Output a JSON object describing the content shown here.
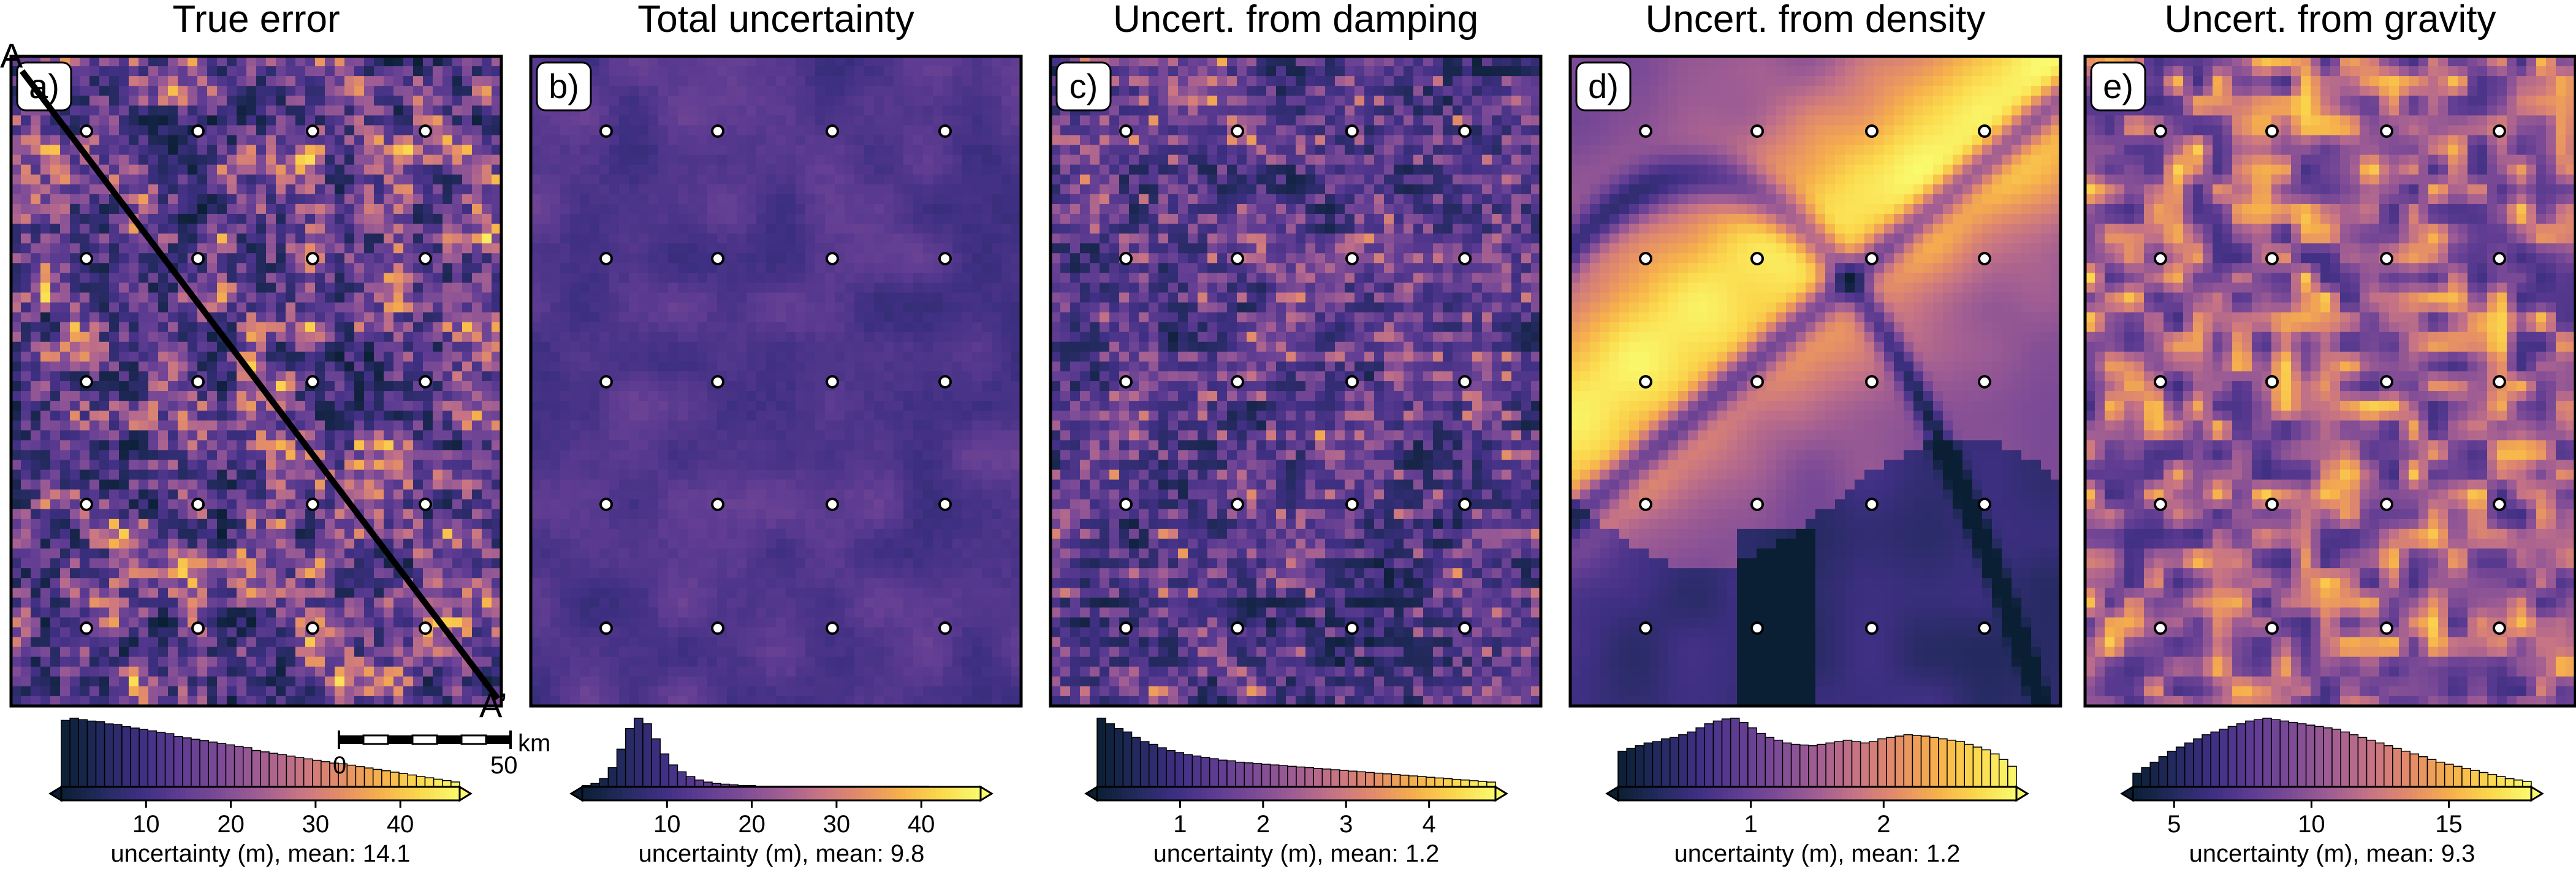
{
  "colors": {
    "colormap": [
      "#0a1f33",
      "#232a5e",
      "#3e2f82",
      "#5e3c92",
      "#7d4b96",
      "#a15e93",
      "#c77484",
      "#e48d68",
      "#f6b04c",
      "#fbd94d",
      "#fafa6e"
    ],
    "circle_fill": "#ffffff",
    "circle_stroke": "#000000",
    "profile_line": "#000000"
  },
  "profile": {
    "start_label": "A",
    "end_label": "A’"
  },
  "scale_bar": {
    "start_label": "0",
    "end_label": "50",
    "unit_label": "km"
  },
  "chart_data": [
    {
      "type": "heatmap",
      "panel_label": "a)",
      "title": "True error",
      "pattern": "noise",
      "histogram": {
        "xlabel": "uncertainty (m), mean: 14.1",
        "xlim": [
          0,
          47
        ],
        "ticks": [
          10,
          20,
          30,
          40
        ],
        "tick_labels": [
          "10",
          "20",
          "30",
          "40"
        ],
        "counts": [
          95,
          98,
          96,
          94,
          93,
          90,
          89,
          86,
          84,
          82,
          80,
          78,
          76,
          72,
          70,
          68,
          66,
          64,
          62,
          60,
          58,
          56,
          52,
          50,
          48,
          46,
          44,
          42,
          40,
          38,
          36,
          34,
          33,
          31,
          29,
          27,
          25,
          23,
          21,
          19,
          17,
          15,
          13,
          11,
          9,
          7
        ]
      }
    },
    {
      "type": "heatmap",
      "panel_label": "b)",
      "title": "Total uncertainty",
      "pattern": "smooth",
      "histogram": {
        "xlabel": "uncertainty (m), mean: 9.8",
        "xlim": [
          0,
          47
        ],
        "ticks": [
          10,
          20,
          30,
          40
        ],
        "tick_labels": [
          "10",
          "20",
          "30",
          "40"
        ],
        "counts": [
          2,
          5,
          12,
          28,
          55,
          85,
          100,
          92,
          70,
          48,
          32,
          22,
          15,
          10,
          7,
          5,
          4,
          3,
          2,
          2,
          1,
          1,
          1,
          1,
          1,
          1,
          1,
          1,
          1,
          1,
          1,
          1,
          1,
          1,
          1,
          1,
          1,
          1,
          1,
          1,
          0,
          0,
          0,
          0,
          0,
          0
        ]
      }
    },
    {
      "type": "heatmap",
      "panel_label": "c)",
      "title": "Uncert. from damping",
      "pattern": "striped",
      "histogram": {
        "xlabel": "uncertainty (m), mean: 1.2",
        "xlim": [
          0,
          4.8
        ],
        "ticks": [
          1,
          2,
          3,
          4
        ],
        "tick_labels": [
          "1",
          "2",
          "3",
          "4"
        ],
        "counts": [
          100,
          92,
          85,
          80,
          72,
          66,
          62,
          57,
          53,
          50,
          47,
          45,
          43,
          41,
          39,
          38,
          36,
          35,
          34,
          33,
          32,
          31,
          30,
          29,
          28,
          27,
          26,
          25,
          24,
          23,
          22,
          21,
          20,
          19,
          18,
          17,
          16,
          15,
          14,
          13,
          12,
          11,
          10,
          9,
          8,
          7
        ]
      }
    },
    {
      "type": "heatmap",
      "panel_label": "d)",
      "title": "Uncert. from density",
      "pattern": "density",
      "histogram": {
        "xlabel": "uncertainty (m), mean: 1.2",
        "xlim": [
          0,
          3.0
        ],
        "ticks": [
          1,
          2
        ],
        "tick_labels": [
          "1",
          "2"
        ],
        "counts": [
          52,
          56,
          60,
          64,
          66,
          70,
          72,
          76,
          80,
          86,
          92,
          96,
          99,
          100,
          94,
          86,
          78,
          72,
          68,
          64,
          62,
          61,
          60,
          62,
          64,
          66,
          68,
          66,
          64,
          66,
          70,
          72,
          74,
          76,
          75,
          74,
          72,
          70,
          68,
          66,
          62,
          58,
          54,
          48,
          40,
          30
        ]
      }
    },
    {
      "type": "heatmap",
      "panel_label": "e)",
      "title": "Uncert. from gravity",
      "pattern": "blobs",
      "histogram": {
        "xlabel": "uncertainty (m), mean: 9.3",
        "xlim": [
          3.5,
          18
        ],
        "ticks": [
          5,
          10,
          15
        ],
        "tick_labels": [
          "5",
          "10",
          "15"
        ],
        "counts": [
          20,
          28,
          36,
          44,
          52,
          58,
          64,
          70,
          76,
          80,
          84,
          88,
          92,
          96,
          98,
          100,
          98,
          96,
          94,
          92,
          90,
          88,
          86,
          84,
          80,
          76,
          72,
          68,
          64,
          60,
          56,
          52,
          48,
          44,
          40,
          36,
          33,
          30,
          27,
          24,
          21,
          18,
          15,
          12,
          10,
          8
        ]
      }
    }
  ]
}
